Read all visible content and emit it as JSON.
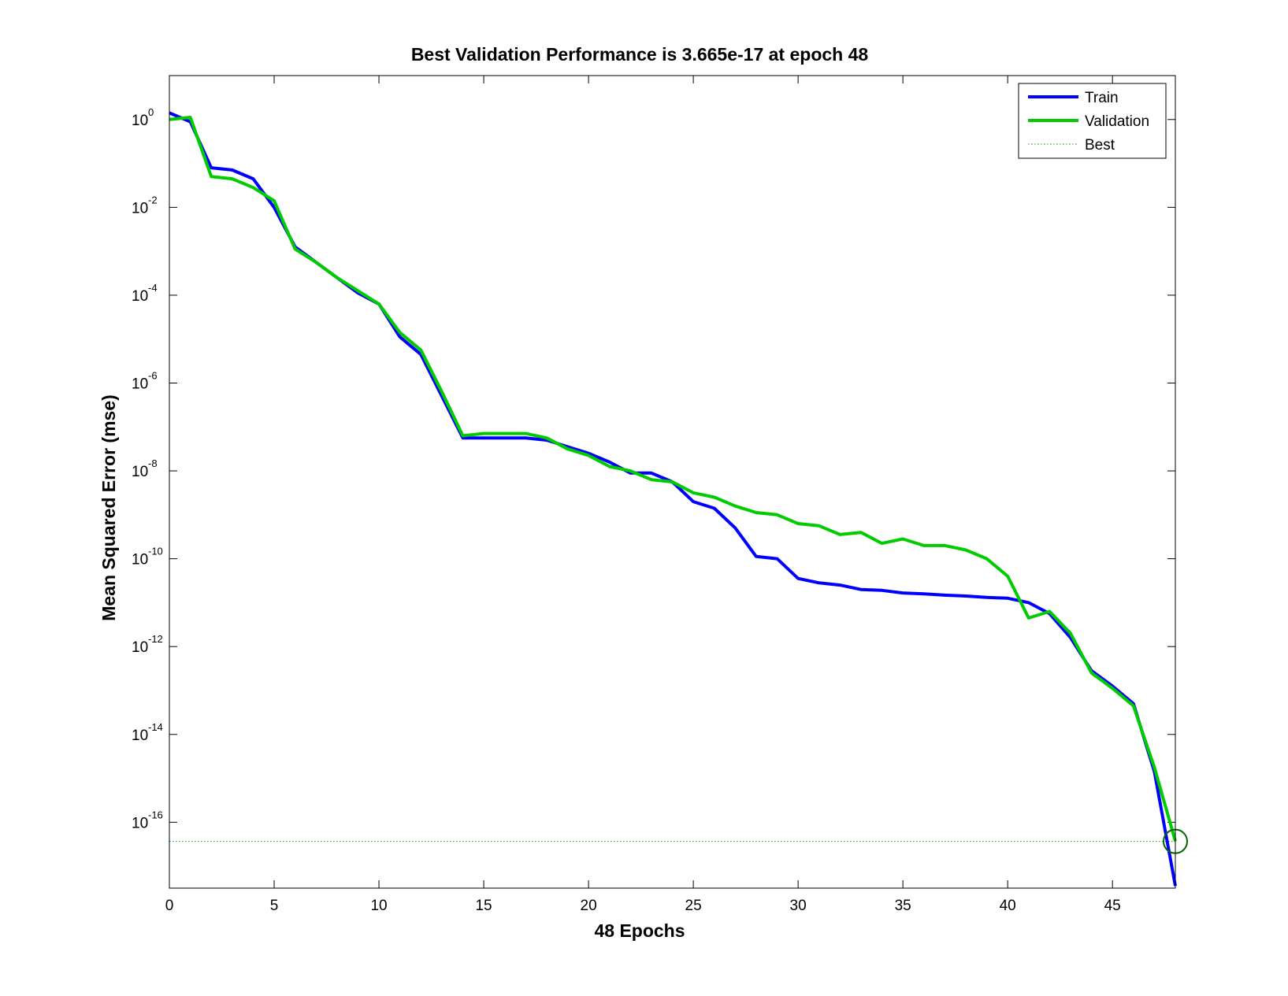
{
  "chart_data": {
    "type": "line",
    "title": "Best Validation Performance is 3.665e-17 at epoch 48",
    "xlabel": "48 Epochs",
    "ylabel": "Mean Squared Error  (mse)",
    "x_scale": "linear",
    "y_scale": "log",
    "xlim": [
      0,
      48
    ],
    "ylim_log10": [
      -17.5,
      1.0
    ],
    "x_ticks": [
      0,
      5,
      10,
      15,
      20,
      25,
      30,
      35,
      40,
      45
    ],
    "y_ticks": [
      {
        "base": "10",
        "exp": "0",
        "log10": 0
      },
      {
        "base": "10",
        "exp": "-2",
        "log10": -2
      },
      {
        "base": "10",
        "exp": "-4",
        "log10": -4
      },
      {
        "base": "10",
        "exp": "-6",
        "log10": -6
      },
      {
        "base": "10",
        "exp": "-8",
        "log10": -8
      },
      {
        "base": "10",
        "exp": "-10",
        "log10": -10
      },
      {
        "base": "10",
        "exp": "-12",
        "log10": -12
      },
      {
        "base": "10",
        "exp": "-14",
        "log10": -14
      },
      {
        "base": "10",
        "exp": "-16",
        "log10": -16
      }
    ],
    "grid": false,
    "legend_position": "top-right",
    "series": [
      {
        "name": "Train",
        "color": "#0000ff",
        "line_style": "solid",
        "x": [
          0,
          1,
          2,
          3,
          4,
          5,
          6,
          7,
          8,
          9,
          10,
          11,
          12,
          13,
          14,
          15,
          16,
          17,
          18,
          19,
          20,
          21,
          22,
          23,
          24,
          25,
          26,
          27,
          28,
          29,
          30,
          31,
          32,
          33,
          34,
          35,
          36,
          37,
          38,
          39,
          40,
          41,
          42,
          43,
          44,
          45,
          46,
          47,
          48
        ],
        "log10_y": [
          0.15,
          -0.05,
          -1.1,
          -1.15,
          -1.35,
          -2.0,
          -2.9,
          -3.25,
          -3.6,
          -3.95,
          -4.2,
          -4.95,
          -5.35,
          -6.3,
          -7.25,
          -7.25,
          -7.25,
          -7.25,
          -7.3,
          -7.45,
          -7.6,
          -7.8,
          -8.05,
          -8.05,
          -8.25,
          -8.7,
          -8.85,
          -9.3,
          -9.95,
          -10.0,
          -10.45,
          -10.55,
          -10.6,
          -10.7,
          -10.72,
          -10.78,
          -10.8,
          -10.83,
          -10.85,
          -10.88,
          -10.9,
          -11.0,
          -11.25,
          -11.8,
          -12.55,
          -12.9,
          -13.3,
          -14.85,
          -17.45
        ]
      },
      {
        "name": "Validation",
        "color": "#00cc00",
        "line_style": "solid",
        "x": [
          0,
          1,
          2,
          3,
          4,
          5,
          6,
          7,
          8,
          9,
          10,
          11,
          12,
          13,
          14,
          15,
          16,
          17,
          18,
          19,
          20,
          21,
          22,
          23,
          24,
          25,
          26,
          27,
          28,
          29,
          30,
          31,
          32,
          33,
          34,
          35,
          36,
          37,
          38,
          39,
          40,
          41,
          42,
          43,
          44,
          45,
          46,
          47,
          48
        ],
        "log10_y": [
          0.0,
          0.05,
          -1.3,
          -1.35,
          -1.55,
          -1.85,
          -2.95,
          -3.25,
          -3.6,
          -3.9,
          -4.2,
          -4.85,
          -5.25,
          -6.2,
          -7.2,
          -7.15,
          -7.15,
          -7.15,
          -7.25,
          -7.5,
          -7.65,
          -7.9,
          -8.0,
          -8.2,
          -8.25,
          -8.5,
          -8.6,
          -8.8,
          -8.95,
          -9.0,
          -9.2,
          -9.25,
          -9.45,
          -9.4,
          -9.65,
          -9.55,
          -9.7,
          -9.7,
          -9.8,
          -10.0,
          -10.4,
          -11.35,
          -11.2,
          -11.7,
          -12.6,
          -12.95,
          -13.35,
          -14.75,
          -16.43
        ]
      }
    ],
    "best": {
      "name": "Best",
      "epoch": 48,
      "value": "3.665e-17",
      "log10_value": -16.436,
      "color": "#00aa00",
      "line_style": "dotted",
      "marker": "circle"
    }
  }
}
